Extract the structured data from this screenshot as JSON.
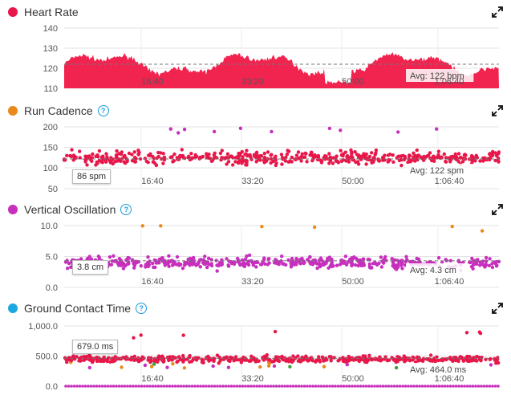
{
  "panels": [
    {
      "title": "Heart Rate",
      "color": "#e8174a",
      "help": false,
      "avg_label": "Avg: 122 bpm",
      "tooltip": "",
      "yticks": [
        "140",
        "130",
        "120",
        "110"
      ],
      "xticks": [
        "16:40",
        "33:20",
        "50:00",
        "1:06:40"
      ]
    },
    {
      "title": "Run Cadence",
      "color": "#e8891a",
      "help": true,
      "avg_label": "Avg: 122 spm",
      "tooltip": "86 spm",
      "yticks": [
        "200",
        "150",
        "100",
        "50"
      ],
      "xticks": [
        "16:40",
        "33:20",
        "50:00",
        "1:06:40"
      ]
    },
    {
      "title": "Vertical Oscillation",
      "color": "#c72fbd",
      "help": true,
      "avg_label": "Avg: 4.3 cm",
      "tooltip": "3.8 cm",
      "yticks": [
        "10.0",
        "5.0",
        "0.0"
      ],
      "xticks": [
        "16:40",
        "33:20",
        "50:00",
        "1:06:40"
      ]
    },
    {
      "title": "Ground Contact Time",
      "color": "#1ba8e0",
      "help": true,
      "avg_label": "Avg: 464.0 ms",
      "tooltip": "679.0 ms",
      "yticks": [
        "1,000.0",
        "500.0",
        "0.0"
      ],
      "xticks": [
        "16:40",
        "33:20",
        "50:00",
        "1:06:40"
      ]
    }
  ],
  "chart_data": [
    {
      "type": "area",
      "title": "Heart Rate",
      "ylim": [
        110,
        140
      ],
      "avg": 122,
      "x_duration_s": 4500
    },
    {
      "type": "scatter",
      "title": "Run Cadence",
      "ylim": [
        50,
        200
      ],
      "avg": 122,
      "x_duration_s": 4500
    },
    {
      "type": "scatter",
      "title": "Vertical Oscillation",
      "ylim": [
        0,
        10
      ],
      "avg": 4.3,
      "x_duration_s": 4500
    },
    {
      "type": "scatter",
      "title": "Ground Contact Time",
      "ylim": [
        0,
        1000
      ],
      "avg": 464,
      "x_duration_s": 4500
    }
  ],
  "zone_colors": {
    "red": "#e8174a",
    "orange": "#e8891a",
    "green": "#3aa23a",
    "blue": "#1ba8e0",
    "purple": "#c72fbd"
  }
}
